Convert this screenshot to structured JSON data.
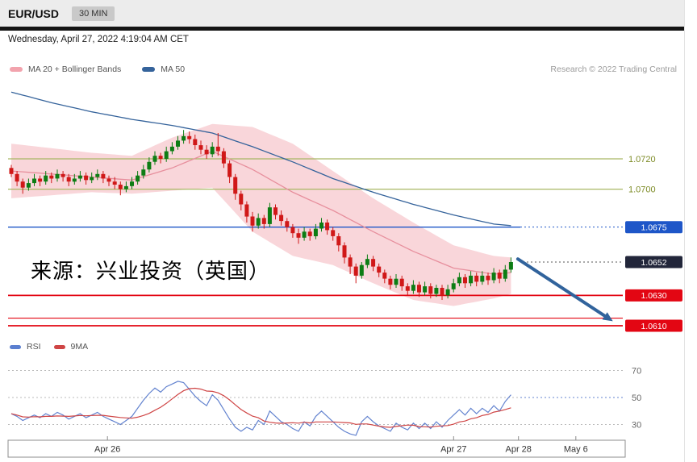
{
  "header": {
    "symbol": "EUR/USD",
    "timeframe": "30 MIN"
  },
  "datetime": "Wednesday, April 27, 2022 4:19:04 AM CET",
  "legend_price": [
    {
      "label": "MA 20 + Bollinger Bands",
      "color": "#f2a3ad"
    },
    {
      "label": "MA 50",
      "color": "#35639b"
    }
  ],
  "copyright": "Research © 2022 Trading Central",
  "watermark": "来源：兴业投资（英国）",
  "legend_rsi": [
    {
      "label": "RSI",
      "color": "#5b7fd0"
    },
    {
      "label": "9MA",
      "color": "#cf4545"
    }
  ],
  "colors": {
    "bb_fill": "#f9d6da",
    "ma20": "#e78f9d",
    "ma50": "#35639b",
    "candle_up": "#0d7d14",
    "candle_down": "#d01818",
    "line_olive": "#a9b765",
    "text_olive": "#7d8b26",
    "blue": "#1e56c8",
    "dark_badge": "#22263a",
    "red": "#e30613",
    "rsi": "#6383cf",
    "rsi_ma": "#cf4545",
    "arrow": "#31639c"
  },
  "chart_data": {
    "type": "candlestick",
    "symbol": "EUR/USD",
    "interval": "30 MIN",
    "price_axis": {
      "visible_min": 1.06,
      "visible_max": 1.077,
      "precision": 4
    },
    "levels": [
      {
        "price": 1.072,
        "label": "1.0720",
        "style": "olive"
      },
      {
        "price": 1.07,
        "label": "1.0700",
        "style": "olive"
      },
      {
        "price": 1.0675,
        "label": "1.0675",
        "style": "blue"
      },
      {
        "price": 1.0652,
        "label": "1.0652",
        "style": "dark"
      },
      {
        "price": 1.063,
        "label": "1.0630",
        "style": "red"
      },
      {
        "price": 1.0615,
        "label": "",
        "style": "red-thin"
      },
      {
        "price": 1.061,
        "label": "1.0610",
        "style": "red"
      }
    ],
    "candles": [
      [
        1.0714,
        1.0716,
        1.0708,
        1.071
      ],
      [
        1.071,
        1.0712,
        1.0702,
        1.0705
      ],
      [
        1.0705,
        1.0707,
        1.0697,
        1.0701
      ],
      [
        1.0701,
        1.0707,
        1.0699,
        1.0704
      ],
      [
        1.0704,
        1.071,
        1.0702,
        1.0707
      ],
      [
        1.0707,
        1.0709,
        1.0702,
        1.0705
      ],
      [
        1.0705,
        1.0712,
        1.0703,
        1.0709
      ],
      [
        1.0709,
        1.0711,
        1.0704,
        1.0707
      ],
      [
        1.0707,
        1.0713,
        1.0705,
        1.071
      ],
      [
        1.071,
        1.0712,
        1.0705,
        1.0708
      ],
      [
        1.0708,
        1.071,
        1.0702,
        1.0705
      ],
      [
        1.0705,
        1.071,
        1.0703,
        1.0707
      ],
      [
        1.0707,
        1.0712,
        1.0705,
        1.0709
      ],
      [
        1.0709,
        1.0711,
        1.0703,
        1.0706
      ],
      [
        1.0706,
        1.0711,
        1.0704,
        1.0708
      ],
      [
        1.0708,
        1.0713,
        1.0706,
        1.071
      ],
      [
        1.071,
        1.0712,
        1.0704,
        1.0707
      ],
      [
        1.0707,
        1.0709,
        1.0702,
        1.0705
      ],
      [
        1.0705,
        1.0708,
        1.07,
        1.0703
      ],
      [
        1.0703,
        1.0705,
        1.0696,
        1.07
      ],
      [
        1.07,
        1.0705,
        1.0698,
        1.0702
      ],
      [
        1.0702,
        1.0708,
        1.07,
        1.0705
      ],
      [
        1.0705,
        1.0712,
        1.0703,
        1.0709
      ],
      [
        1.0709,
        1.0716,
        1.0707,
        1.0713
      ],
      [
        1.0713,
        1.0721,
        1.0711,
        1.0718
      ],
      [
        1.0718,
        1.0725,
        1.0716,
        1.0722
      ],
      [
        1.0722,
        1.0724,
        1.0717,
        1.072
      ],
      [
        1.072,
        1.0728,
        1.0718,
        1.0725
      ],
      [
        1.0725,
        1.0731,
        1.0723,
        1.0728
      ],
      [
        1.0728,
        1.0735,
        1.0726,
        1.0732
      ],
      [
        1.0732,
        1.0739,
        1.073,
        1.0735
      ],
      [
        1.0735,
        1.0738,
        1.073,
        1.0733
      ],
      [
        1.0733,
        1.0736,
        1.0726,
        1.0729
      ],
      [
        1.0729,
        1.0732,
        1.0723,
        1.0726
      ],
      [
        1.0726,
        1.0729,
        1.072,
        1.0723
      ],
      [
        1.0723,
        1.0731,
        1.0721,
        1.0728
      ],
      [
        1.0728,
        1.0737,
        1.0722,
        1.0725
      ],
      [
        1.0725,
        1.0727,
        1.0714,
        1.0717
      ],
      [
        1.0717,
        1.0719,
        1.0704,
        1.0708
      ],
      [
        1.0708,
        1.071,
        1.0693,
        1.0697
      ],
      [
        1.0697,
        1.0699,
        1.0686,
        1.069
      ],
      [
        1.069,
        1.0692,
        1.0678,
        1.0682
      ],
      [
        1.0682,
        1.0685,
        1.0672,
        1.0676
      ],
      [
        1.0676,
        1.0684,
        1.0674,
        1.0681
      ],
      [
        1.0681,
        1.0683,
        1.0674,
        1.0677
      ],
      [
        1.0677,
        1.0691,
        1.0675,
        1.0688
      ],
      [
        1.0688,
        1.069,
        1.068,
        1.0683
      ],
      [
        1.0683,
        1.0686,
        1.0676,
        1.0679
      ],
      [
        1.0679,
        1.0681,
        1.0672,
        1.0675
      ],
      [
        1.0675,
        1.0677,
        1.0668,
        1.0671
      ],
      [
        1.0671,
        1.0674,
        1.0664,
        1.0668
      ],
      [
        1.0668,
        1.0675,
        1.0666,
        1.0672
      ],
      [
        1.0672,
        1.0674,
        1.0666,
        1.0669
      ],
      [
        1.0669,
        1.0677,
        1.0667,
        1.0674
      ],
      [
        1.0674,
        1.0681,
        1.0672,
        1.0678
      ],
      [
        1.0678,
        1.068,
        1.067,
        1.0673
      ],
      [
        1.0673,
        1.0675,
        1.0666,
        1.0669
      ],
      [
        1.0669,
        1.0671,
        1.0659,
        1.0663
      ],
      [
        1.0663,
        1.0665,
        1.0651,
        1.0655
      ],
      [
        1.0655,
        1.0657,
        1.0644,
        1.0649
      ],
      [
        1.0649,
        1.0651,
        1.0638,
        1.0643
      ],
      [
        1.0643,
        1.0652,
        1.0641,
        1.065
      ],
      [
        1.065,
        1.0657,
        1.0648,
        1.0654
      ],
      [
        1.0654,
        1.0656,
        1.0646,
        1.0649
      ],
      [
        1.0649,
        1.0651,
        1.0642,
        1.0645
      ],
      [
        1.0645,
        1.0647,
        1.0638,
        1.0641
      ],
      [
        1.0641,
        1.0643,
        1.0634,
        1.0637
      ],
      [
        1.0637,
        1.0644,
        1.0635,
        1.0641
      ],
      [
        1.0641,
        1.0643,
        1.0633,
        1.0636
      ],
      [
        1.0636,
        1.0638,
        1.063,
        1.0633
      ],
      [
        1.0633,
        1.064,
        1.0631,
        1.0637
      ],
      [
        1.0637,
        1.0639,
        1.0629,
        1.0632
      ],
      [
        1.0632,
        1.0639,
        1.063,
        1.0636
      ],
      [
        1.0636,
        1.0638,
        1.0628,
        1.0631
      ],
      [
        1.0631,
        1.0637,
        1.0629,
        1.0635
      ],
      [
        1.0635,
        1.0637,
        1.0627,
        1.063
      ],
      [
        1.063,
        1.0637,
        1.0628,
        1.0634
      ],
      [
        1.0634,
        1.0641,
        1.0632,
        1.0638
      ],
      [
        1.0638,
        1.0645,
        1.0636,
        1.0642
      ],
      [
        1.0642,
        1.0644,
        1.0635,
        1.0638
      ],
      [
        1.0638,
        1.0646,
        1.0636,
        1.0643
      ],
      [
        1.0643,
        1.0645,
        1.0636,
        1.0639
      ],
      [
        1.0639,
        1.0646,
        1.0637,
        1.0643
      ],
      [
        1.0643,
        1.0645,
        1.0637,
        1.064
      ],
      [
        1.064,
        1.0648,
        1.0638,
        1.0645
      ],
      [
        1.0645,
        1.0647,
        1.0638,
        1.0641
      ],
      [
        1.0641,
        1.065,
        1.0639,
        1.0647
      ],
      [
        1.0647,
        1.0655,
        1.0645,
        1.0652
      ]
    ],
    "ma50": {
      "indices": [
        0,
        7,
        14,
        21,
        28,
        35,
        42,
        49,
        56,
        63,
        70,
        77,
        84,
        87
      ],
      "values": [
        1.0764,
        1.0757,
        1.0751,
        1.0746,
        1.0742,
        1.0737,
        1.0728,
        1.0718,
        1.0707,
        1.0698,
        1.069,
        1.0683,
        1.0677,
        1.0676
      ]
    },
    "ma20": {
      "indices": [
        0,
        7,
        14,
        21,
        28,
        35,
        42,
        49,
        56,
        63,
        70,
        77,
        84,
        87
      ],
      "values": [
        1.0712,
        1.071,
        1.0708,
        1.0706,
        1.0714,
        1.0725,
        1.0713,
        1.0698,
        1.0686,
        1.0672,
        1.0659,
        1.0648,
        1.0644,
        1.0645
      ]
    },
    "bollinger": {
      "indices": [
        0,
        7,
        14,
        21,
        28,
        35,
        42,
        49,
        56,
        63,
        70,
        77,
        84,
        87
      ],
      "upper": [
        1.073,
        1.0727,
        1.0724,
        1.0722,
        1.0734,
        1.0743,
        1.0741,
        1.073,
        1.0712,
        1.0694,
        1.0678,
        1.0663,
        1.0656,
        1.0655
      ],
      "lower": [
        1.0694,
        1.0696,
        1.0698,
        1.0697,
        1.0699,
        1.0701,
        1.0672,
        1.0656,
        1.065,
        1.0638,
        1.0627,
        1.0623,
        1.0628,
        1.0631
      ]
    },
    "rsi_panel": {
      "guides": [
        70,
        50,
        30
      ],
      "ma_period": 9,
      "values": [
        38,
        36,
        33,
        35,
        37,
        35,
        38,
        36,
        39,
        37,
        34,
        36,
        38,
        35,
        37,
        39,
        36,
        34,
        32,
        30,
        33,
        36,
        42,
        48,
        53,
        57,
        54,
        58,
        60,
        62,
        61,
        56,
        51,
        47,
        44,
        52,
        48,
        41,
        34,
        28,
        25,
        28,
        26,
        33,
        30,
        40,
        36,
        32,
        30,
        27,
        25,
        32,
        29,
        36,
        40,
        36,
        32,
        28,
        25,
        23,
        22,
        32,
        36,
        32,
        29,
        27,
        25,
        31,
        28,
        26,
        31,
        27,
        31,
        27,
        32,
        28,
        33,
        37,
        41,
        37,
        42,
        38,
        42,
        39,
        44,
        40,
        47,
        52
      ]
    },
    "x_axis": [
      {
        "label": "Apr 26",
        "f": 0.161
      },
      {
        "label": "Apr 27",
        "f": 0.722
      },
      {
        "label": "Apr 28",
        "f": 0.827
      },
      {
        "label": "May 6",
        "f": 0.92
      }
    ],
    "arrow": {
      "from_f": 0.826,
      "from_price": 1.0654,
      "to_f": 0.98,
      "to_price": 1.0613
    }
  }
}
